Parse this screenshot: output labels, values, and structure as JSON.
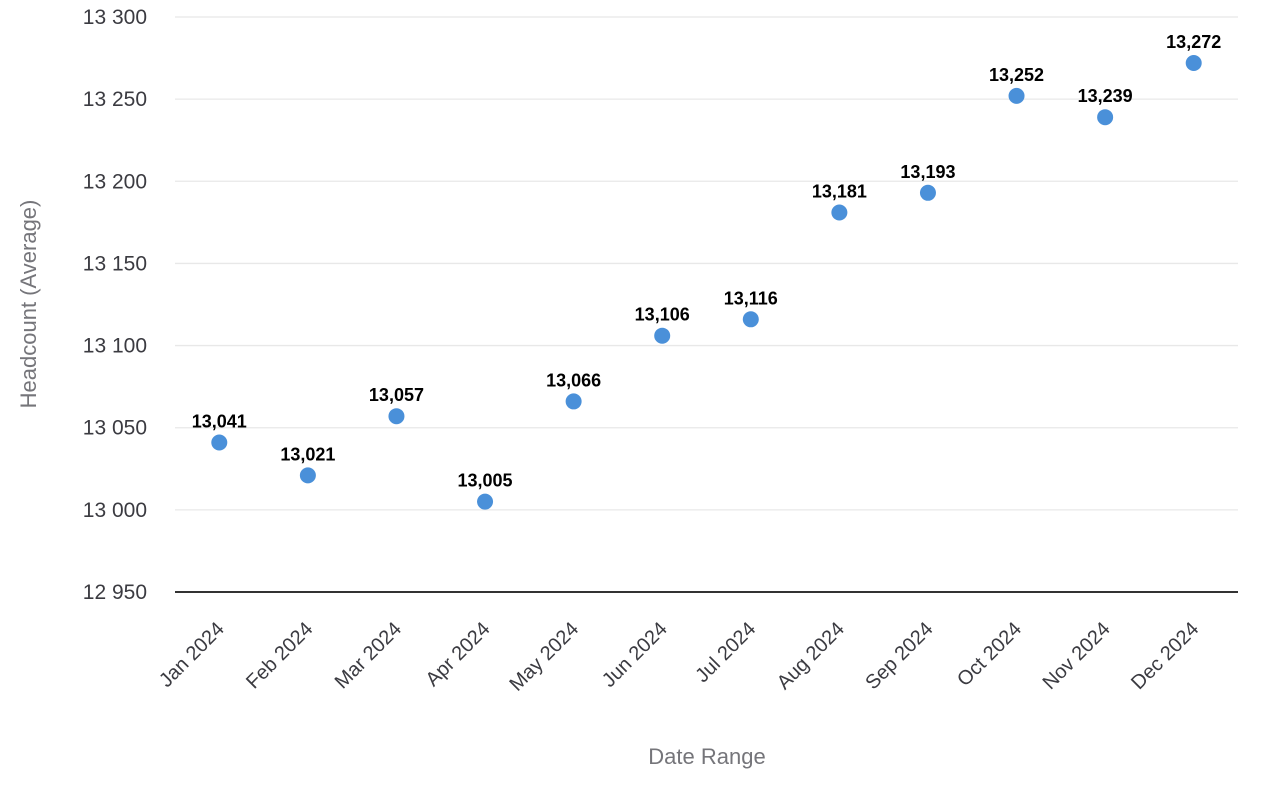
{
  "chart_data": {
    "type": "scatter",
    "title": "",
    "xlabel": "Date Range",
    "ylabel": "Headcount (Average)",
    "categories": [
      "Jan 2024",
      "Feb 2024",
      "Mar 2024",
      "Apr 2024",
      "May 2024",
      "Jun 2024",
      "Jul 2024",
      "Aug 2024",
      "Sep 2024",
      "Oct 2024",
      "Nov 2024",
      "Dec 2024"
    ],
    "values": [
      13041,
      13021,
      13057,
      13005,
      13066,
      13106,
      13116,
      13181,
      13193,
      13252,
      13239,
      13272
    ],
    "point_labels": [
      "13,041",
      "13,021",
      "13,057",
      "13,005",
      "13,066",
      "13,106",
      "13,116",
      "13,181",
      "13,193",
      "13,252",
      "13,239",
      "13,272"
    ],
    "ylim": [
      12950,
      13300
    ],
    "yticks": [
      {
        "value": 12950,
        "label": "12 950"
      },
      {
        "value": 13000,
        "label": "13 000"
      },
      {
        "value": 13050,
        "label": "13 050"
      },
      {
        "value": 13100,
        "label": "13 100"
      },
      {
        "value": 13150,
        "label": "13 150"
      },
      {
        "value": 13200,
        "label": "13 200"
      },
      {
        "value": 13250,
        "label": "13 250"
      },
      {
        "value": 13300,
        "label": "13 300"
      }
    ],
    "grid": "horizontal",
    "legend": "none",
    "colors": {
      "point": "#4a90d9",
      "point_label": "#000000",
      "tick_label": "#3b3b41",
      "axis_title": "#75757a",
      "gridline": "#e8e8e8",
      "axis_line": "#333333"
    }
  }
}
